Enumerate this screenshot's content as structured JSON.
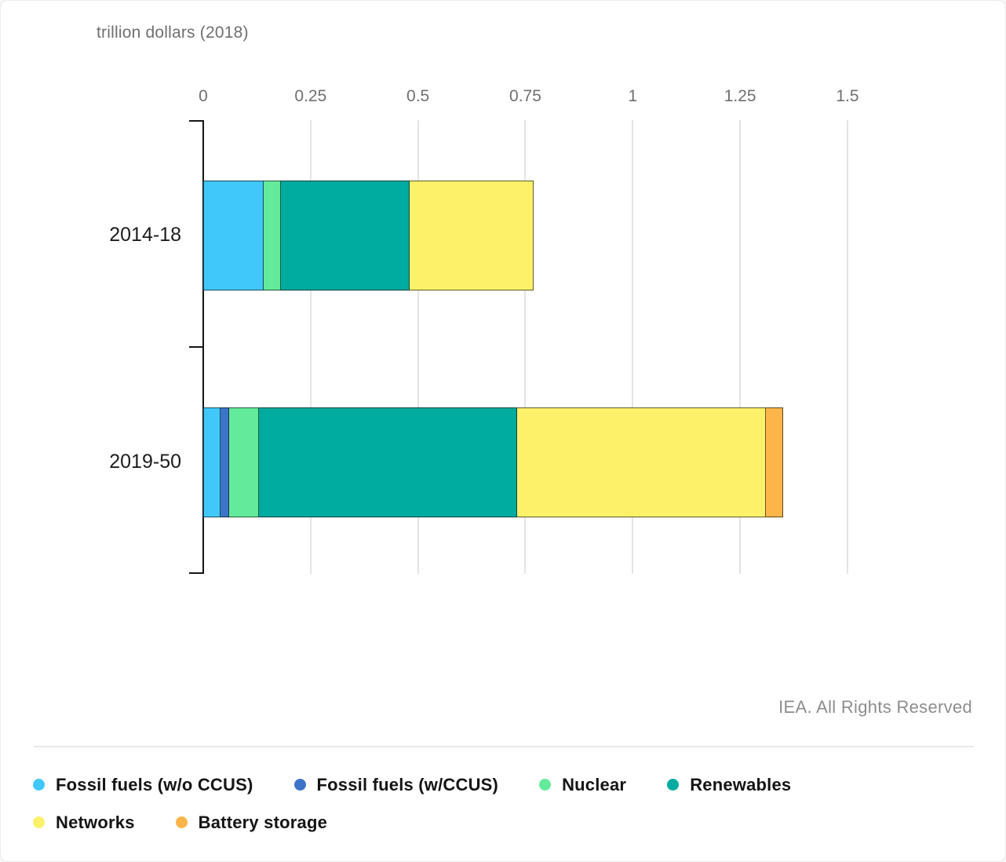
{
  "chart_data": {
    "type": "bar",
    "orientation": "horizontal",
    "stacked": true,
    "title": "trillion dollars (2018)",
    "categories": [
      "2014-18",
      "2019-50"
    ],
    "series": [
      {
        "name": "Fossil fuels (w/o CCUS)",
        "color": "#41C8FA",
        "values": [
          0.14,
          0.04
        ]
      },
      {
        "name": "Fossil fuels (w/CCUS)",
        "color": "#3D74C9",
        "values": [
          0.0,
          0.02
        ]
      },
      {
        "name": "Nuclear",
        "color": "#63EB9B",
        "values": [
          0.04,
          0.07
        ]
      },
      {
        "name": "Renewables",
        "color": "#00ABA0",
        "values": [
          0.3,
          0.6
        ]
      },
      {
        "name": "Networks",
        "color": "#FDF169",
        "values": [
          0.29,
          0.58
        ]
      },
      {
        "name": "Battery storage",
        "color": "#FDB549",
        "values": [
          0.0,
          0.04
        ]
      }
    ],
    "totals": [
      0.77,
      1.35
    ],
    "x_ticks": [
      "0",
      "0.25",
      "0.5",
      "0.75",
      "1",
      "1.25",
      "1.5"
    ],
    "x_tick_values": [
      0,
      0.25,
      0.5,
      0.75,
      1,
      1.25,
      1.5
    ],
    "xlim": [
      0,
      1.5
    ],
    "grid": true,
    "legend_position": "bottom"
  },
  "footer": {
    "credit": "IEA. All Rights Reserved"
  }
}
